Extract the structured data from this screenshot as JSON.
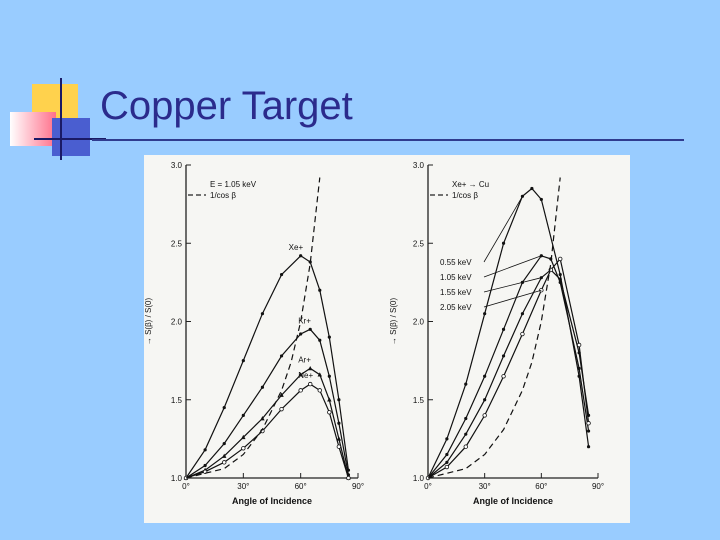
{
  "slide": {
    "title": "Copper Target",
    "colors": {
      "background": "#99ccff",
      "title": "#2b2b8c",
      "panel": "#f6f6f3"
    }
  },
  "chart_data": [
    {
      "type": "line",
      "title": "",
      "xlabel": "Angle of Incidence",
      "ylabel": "→ S(β) / S(0)",
      "xlim": [
        0,
        90
      ],
      "ylim": [
        1.0,
        3.0
      ],
      "xticks": [
        "0°",
        "30°",
        "60°",
        "90°"
      ],
      "yticks": [
        "1.0",
        "1.5",
        "2.0",
        "2.5",
        "3.0"
      ],
      "legend_lines": [
        "E = 1.05 keV",
        "1/cos β"
      ],
      "legend_position": "top-left",
      "grid": false,
      "series": [
        {
          "name": "Xe+",
          "x": [
            0,
            10,
            20,
            30,
            40,
            50,
            60,
            65,
            70,
            75,
            80,
            85
          ],
          "y": [
            1.0,
            1.18,
            1.45,
            1.75,
            2.05,
            2.3,
            2.42,
            2.38,
            2.2,
            1.9,
            1.5,
            1.05
          ]
        },
        {
          "name": "Kr+",
          "x": [
            0,
            10,
            20,
            30,
            40,
            50,
            60,
            65,
            70,
            75,
            80,
            85
          ],
          "y": [
            1.0,
            1.08,
            1.22,
            1.4,
            1.58,
            1.78,
            1.92,
            1.95,
            1.88,
            1.65,
            1.35,
            1.02
          ]
        },
        {
          "name": "Ar+",
          "x": [
            0,
            10,
            20,
            30,
            40,
            50,
            60,
            65,
            70,
            75,
            80,
            85
          ],
          "y": [
            1.0,
            1.05,
            1.14,
            1.26,
            1.38,
            1.53,
            1.66,
            1.7,
            1.66,
            1.5,
            1.25,
            1.0
          ]
        },
        {
          "name": "Ne+",
          "x": [
            0,
            10,
            20,
            30,
            40,
            50,
            60,
            65,
            70,
            75,
            80,
            85
          ],
          "y": [
            1.0,
            1.04,
            1.1,
            1.19,
            1.3,
            1.44,
            1.56,
            1.6,
            1.56,
            1.42,
            1.2,
            1.0
          ]
        },
        {
          "name": "1/cos β",
          "style": "dashed",
          "x": [
            0,
            20,
            30,
            40,
            50,
            55,
            60,
            65,
            70
          ],
          "y": [
            1.0,
            1.06,
            1.15,
            1.31,
            1.56,
            1.74,
            2.0,
            2.37,
            2.92
          ]
        }
      ]
    },
    {
      "type": "line",
      "title": "",
      "xlabel": "Angle of Incidence",
      "ylabel": "→ S(β) / S(0)",
      "xlim": [
        0,
        90
      ],
      "ylim": [
        1.0,
        3.0
      ],
      "xticks": [
        "0°",
        "30°",
        "60°",
        "90°"
      ],
      "yticks": [
        "1.0",
        "1.5",
        "2.0",
        "2.5",
        "3.0"
      ],
      "legend_lines": [
        "Xe+ → Cu",
        "1/cos β"
      ],
      "legend_position": "top-left",
      "grid": false,
      "series": [
        {
          "name": "0.55 keV",
          "x": [
            0,
            10,
            20,
            30,
            40,
            50,
            55,
            60,
            70,
            80,
            85
          ],
          "y": [
            1.0,
            1.25,
            1.6,
            2.05,
            2.5,
            2.8,
            2.85,
            2.78,
            2.3,
            1.65,
            1.2
          ]
        },
        {
          "name": "1.05 keV",
          "x": [
            0,
            10,
            20,
            30,
            40,
            50,
            60,
            65,
            70,
            80,
            85
          ],
          "y": [
            1.0,
            1.15,
            1.38,
            1.65,
            1.95,
            2.25,
            2.42,
            2.4,
            2.25,
            1.7,
            1.3
          ]
        },
        {
          "name": "1.55 keV",
          "x": [
            0,
            10,
            20,
            30,
            40,
            50,
            60,
            65,
            70,
            80,
            85
          ],
          "y": [
            1.0,
            1.1,
            1.28,
            1.5,
            1.78,
            2.05,
            2.28,
            2.33,
            2.27,
            1.8,
            1.4
          ]
        },
        {
          "name": "2.05 keV",
          "x": [
            0,
            10,
            20,
            30,
            40,
            50,
            60,
            65,
            70,
            80,
            85
          ],
          "y": [
            1.0,
            1.07,
            1.2,
            1.4,
            1.65,
            1.92,
            2.2,
            2.33,
            2.4,
            1.85,
            1.35
          ]
        },
        {
          "name": "1/cos β",
          "style": "dashed",
          "x": [
            0,
            20,
            30,
            40,
            50,
            55,
            60,
            65,
            70
          ],
          "y": [
            1.0,
            1.06,
            1.15,
            1.31,
            1.56,
            1.74,
            2.0,
            2.37,
            2.92
          ]
        }
      ]
    }
  ]
}
